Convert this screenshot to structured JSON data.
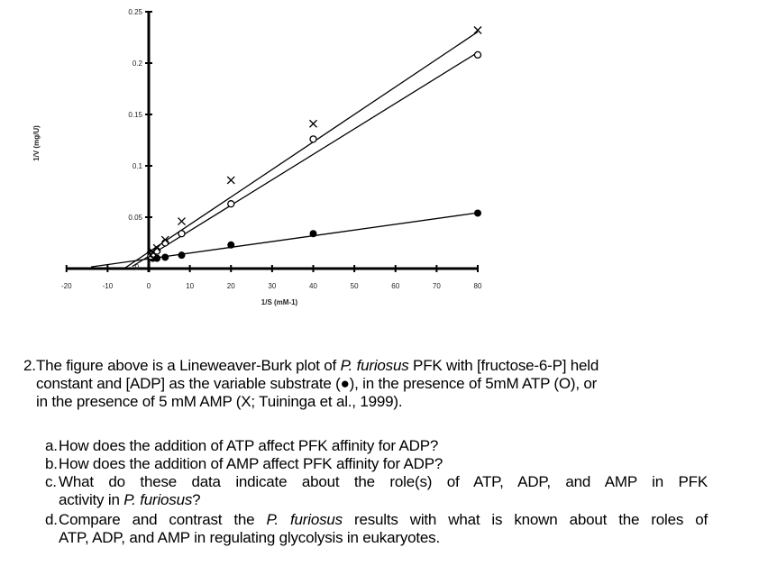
{
  "chart_data": {
    "type": "scatter",
    "title": "",
    "xlabel": "1/S (mM-1)",
    "ylabel": "1/V (mg/U)",
    "xlim": [
      -20,
      80
    ],
    "ylim": [
      0,
      0.25
    ],
    "x_ticks": [
      -20,
      -10,
      0,
      10,
      20,
      30,
      40,
      50,
      60,
      70,
      80
    ],
    "y_ticks": [
      0,
      0.05,
      0.1,
      0.15,
      0.2,
      0.25
    ],
    "y_tick_labels": [
      "0",
      "0.05",
      "0.1",
      "0.15",
      "0.2",
      "0.25"
    ],
    "grid": false,
    "legend": "none (markers described in caption)",
    "series": [
      {
        "name": "ADP only (●)",
        "marker": "filled-circle",
        "x": [
          0.5,
          1,
          2,
          4,
          8,
          20,
          40,
          80
        ],
        "y": [
          0.011,
          0.01,
          0.01,
          0.011,
          0.013,
          0.023,
          0.034,
          0.054
        ],
        "fit_line": {
          "x0": -14,
          "x1": 80,
          "slope": 0.00056,
          "intercept": 0.0095
        }
      },
      {
        "name": "+5 mM ATP (O)",
        "marker": "open-circle",
        "x": [
          0.5,
          1,
          2,
          4,
          8,
          20,
          40,
          80
        ],
        "y": [
          0.012,
          0.014,
          0.017,
          0.025,
          0.034,
          0.063,
          0.126,
          0.208
        ],
        "fit_line": {
          "x0": -4,
          "x1": 80,
          "slope": 0.00248,
          "intercept": 0.012
        }
      },
      {
        "name": "+5 mM AMP (X)",
        "marker": "cross",
        "x": [
          0.5,
          1,
          2,
          4,
          8,
          20,
          40,
          80
        ],
        "y": [
          0.013,
          0.016,
          0.02,
          0.028,
          0.046,
          0.086,
          0.141,
          0.232
        ],
        "fit_line": {
          "x0": -6,
          "x1": 80,
          "slope": 0.00268,
          "intercept": 0.016
        }
      }
    ]
  },
  "axis": {
    "ylabel": "1/V (mg/U)",
    "xlabel": "1/S (mM-1)",
    "zero_label": "0"
  },
  "question": {
    "number": "2.",
    "line1_a": "The figure above is a Lineweaver-Burk plot of ",
    "line1_italic": "P. furiosus",
    "line1_b": " PFK with [fructose-6-P] held",
    "line2": "constant and [ADP] as the variable substrate (●), in the presence of 5mM ATP (O), or",
    "line3": "in the presence of 5 mM AMP (X; Tuininga et al., 1999).",
    "parts": [
      {
        "letter": "a.",
        "text": "How does the addition of ATP affect PFK affinity for ADP?"
      },
      {
        "letter": "b.",
        "text": "How does the addition of AMP affect PFK affinity for ADP?"
      },
      {
        "letter": "c.",
        "line1": "What do these data indicate about the role(s) of ATP, ADP, and AMP in PFK",
        "line2_a": "activity in ",
        "line2_italic": "P. furiosus",
        "line2_b": "?"
      },
      {
        "letter": "d.",
        "line1_a": "Compare and contrast the ",
        "line1_italic": "P. furiosus",
        "line1_b": " results with what is known about the roles of",
        "line2": "ATP, ADP, and AMP in regulating glycolysis in eukaryotes."
      }
    ]
  }
}
